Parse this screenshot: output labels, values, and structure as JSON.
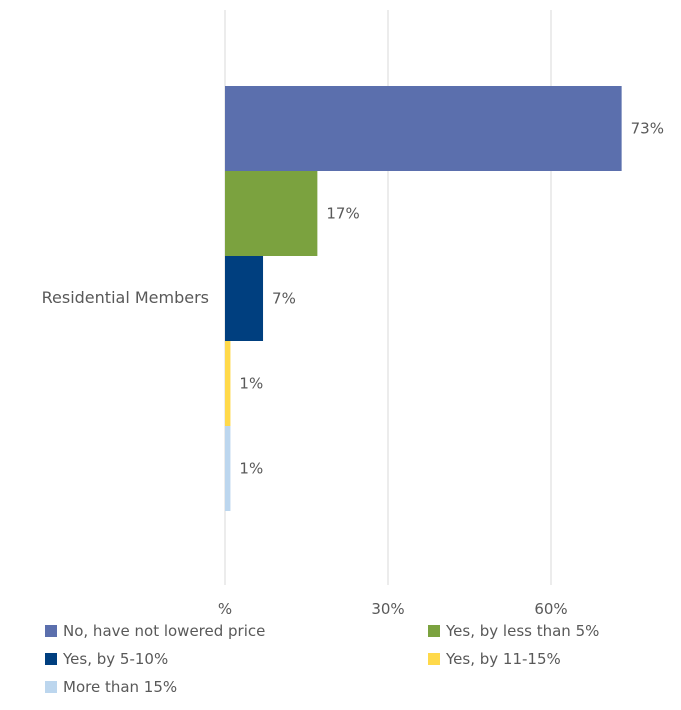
{
  "chart_data": {
    "type": "bar",
    "orientation": "horizontal",
    "categories": [
      "Residential Members"
    ],
    "series": [
      {
        "name": "No, have not lowered price",
        "values": [
          73
        ],
        "label": "73%",
        "color": "#5b6fad"
      },
      {
        "name": "Yes, by less than 5%",
        "values": [
          17
        ],
        "label": "17%",
        "color": "#7ba23f"
      },
      {
        "name": "Yes, by 5-10%",
        "values": [
          7
        ],
        "label": "7%",
        "color": "#003f7f"
      },
      {
        "name": "Yes, by 11-15%",
        "values": [
          1
        ],
        "label": "1%",
        "color": "#ffd94a"
      },
      {
        "name": "More than 15%",
        "values": [
          1
        ],
        "label": "1%",
        "color": "#bcd6ee"
      }
    ],
    "xticks": [
      {
        "value": 0,
        "label": "%"
      },
      {
        "value": 30,
        "label": "30%"
      },
      {
        "value": 60,
        "label": "60%"
      }
    ],
    "xlim": [
      0,
      82.5
    ],
    "grid": true,
    "legend_position": "bottom"
  }
}
